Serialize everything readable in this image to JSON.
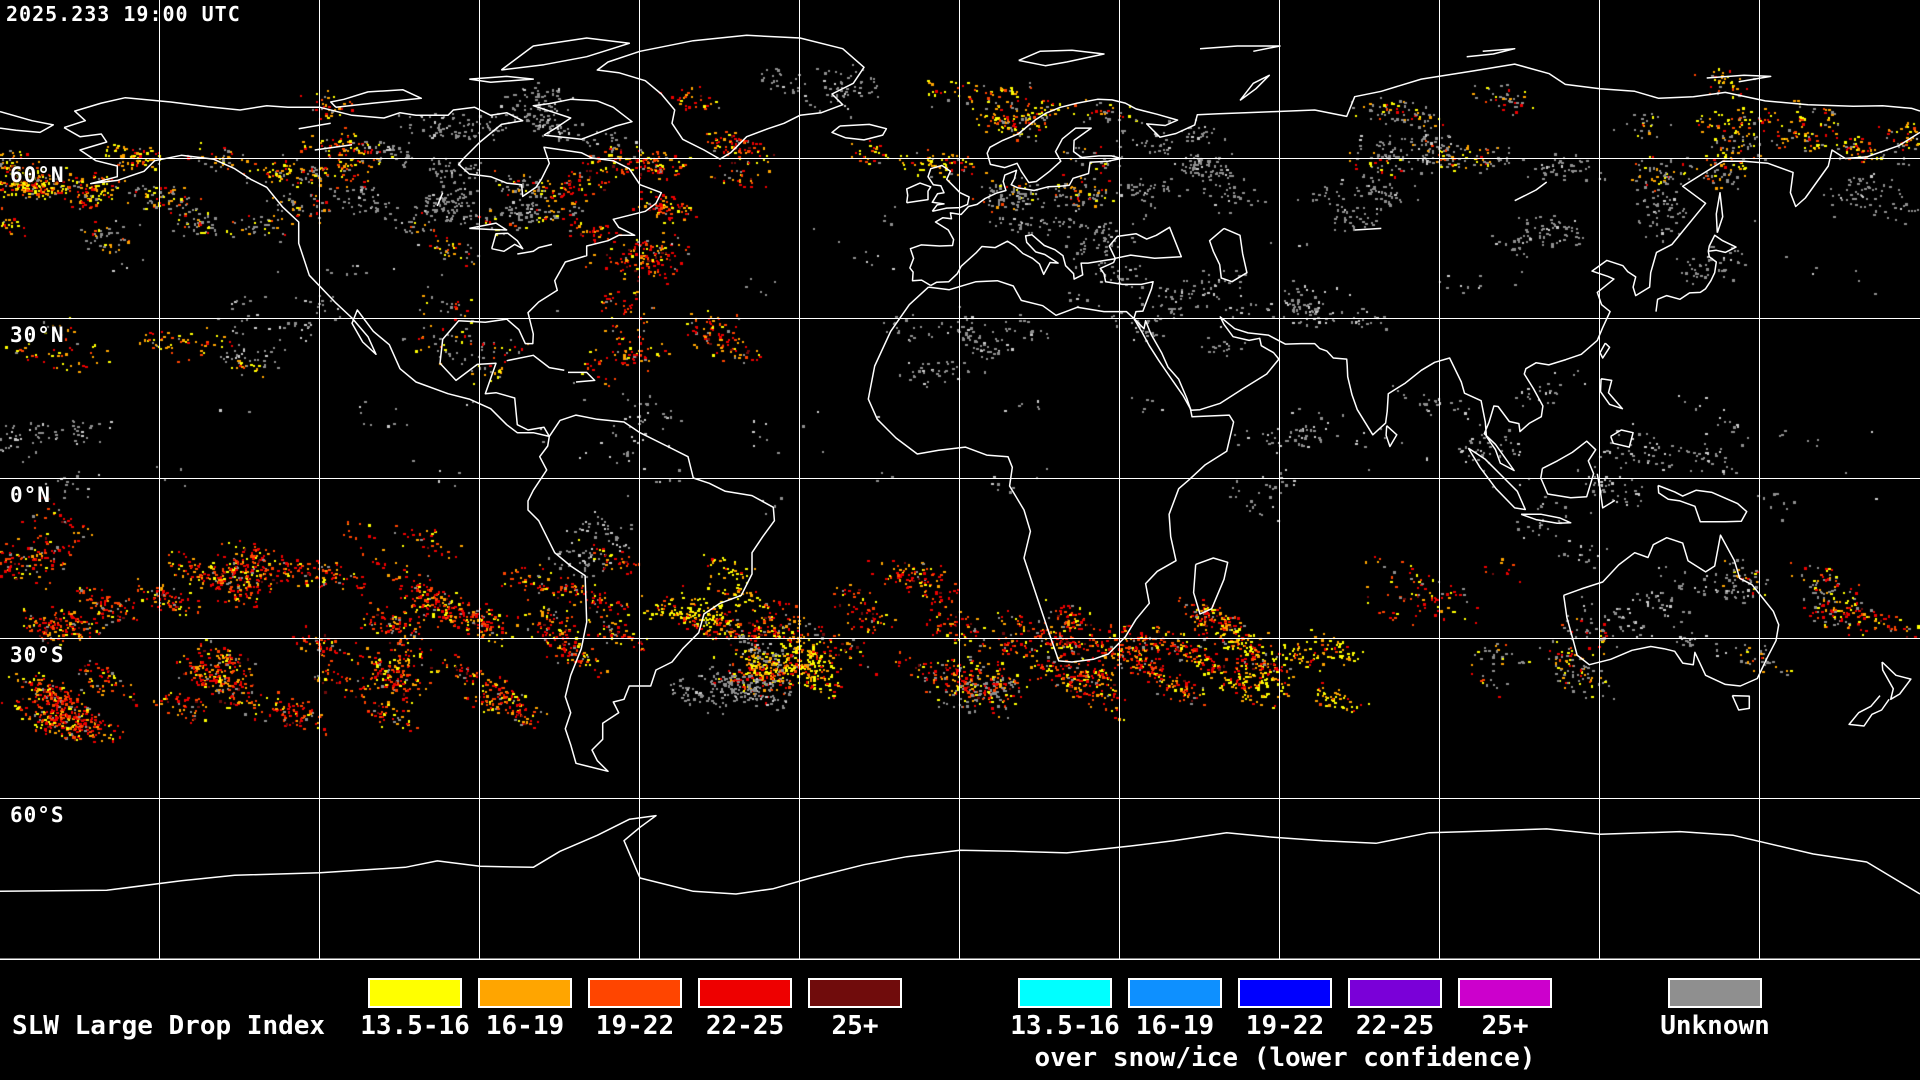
{
  "header": {
    "timestamp": "2025.233 19:00 UTC"
  },
  "map": {
    "background_color": "#000000",
    "grid_color": "#ffffff",
    "coastline_color": "#ffffff",
    "lon_grid_step_deg": 30,
    "lat_grid_step_deg": 30,
    "latitude_labels": [
      {
        "label": "60°N",
        "lat": 60
      },
      {
        "label": "30°N",
        "lat": 30
      },
      {
        "label": "0°N",
        "lat": 0
      },
      {
        "label": "30°S",
        "lat": -30
      },
      {
        "label": "60°S",
        "lat": -60
      }
    ]
  },
  "legend": {
    "title": "SLW Large Drop Index",
    "primary_bins": [
      {
        "label": "13.5-16",
        "color": "#ffff00"
      },
      {
        "label": "16-19",
        "color": "#ffa500"
      },
      {
        "label": "19-22",
        "color": "#ff4500"
      },
      {
        "label": "22-25",
        "color": "#ee0000"
      },
      {
        "label": "25+",
        "color": "#700c0c"
      }
    ],
    "snow_ice_bins": [
      {
        "label": "13.5-16",
        "color": "#00ffff"
      },
      {
        "label": "16-19",
        "color": "#0e90ff"
      },
      {
        "label": "19-22",
        "color": "#0000ff"
      },
      {
        "label": "22-25",
        "color": "#7a00d8"
      },
      {
        "label": "25+",
        "color": "#cc00cc"
      }
    ],
    "snow_ice_caption": "over snow/ice (lower confidence)",
    "unknown_bin": {
      "label": "Unknown",
      "color": "#8f8f8f"
    }
  }
}
